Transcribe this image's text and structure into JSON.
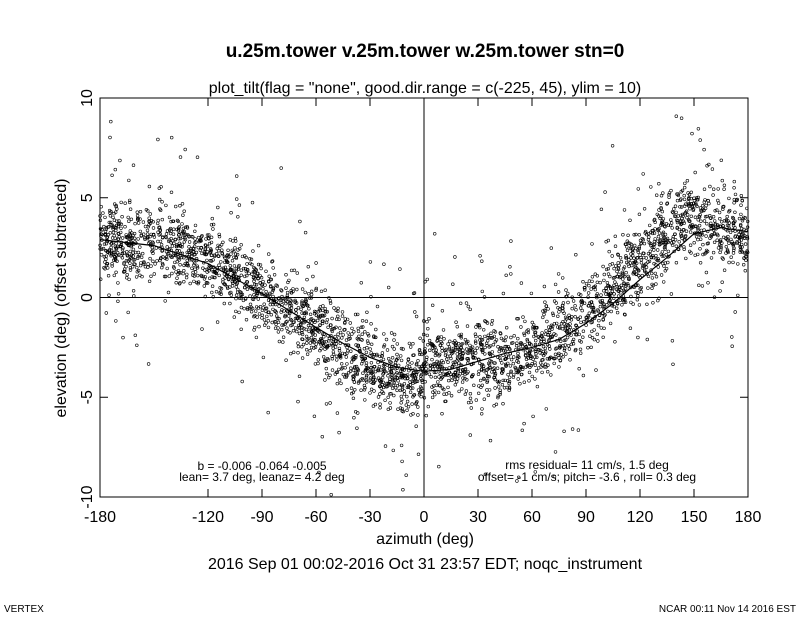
{
  "chart_data": {
    "type": "scatter",
    "title": "u.25m.tower v.25m.tower w.25m.tower stn=0",
    "subtitle": "plot_tilt(flag = \"none\", good.dir.range = c(-225, 45), ylim = 10)",
    "xlabel": "azimuth (deg)",
    "ylabel": "elevation (deg)   (offset subtracted)",
    "xlim": [
      -180,
      180
    ],
    "ylim": [
      -10,
      10
    ],
    "x_ticks": [
      -180,
      -120,
      -90,
      -60,
      -30,
      0,
      30,
      60,
      90,
      120,
      150,
      180
    ],
    "x_tick_labels": [
      "-180",
      "-120",
      "-90",
      "-60",
      "-30",
      "0",
      "30",
      "60",
      "90",
      "120",
      "150",
      "180"
    ],
    "y_ticks": [
      -10,
      -5,
      0,
      5,
      10
    ],
    "y_tick_labels": [
      "-10",
      "-5",
      "0",
      "5",
      "10"
    ],
    "reference_lines": {
      "x": 0,
      "y": 0
    },
    "grid": false,
    "legend": "none",
    "series_color": "#000000",
    "fit_curve": {
      "x": [
        -180,
        -150,
        -120,
        -90,
        -60,
        -45,
        -30,
        -15,
        0,
        15,
        30,
        45,
        60,
        75,
        90,
        105,
        120,
        135,
        150,
        165,
        180
      ],
      "y": [
        2.9,
        2.6,
        1.7,
        0.2,
        -1.5,
        -2.3,
        -3.0,
        -3.5,
        -3.7,
        -3.6,
        -3.2,
        -2.8,
        -2.5,
        -2.1,
        -1.3,
        -0.3,
        0.9,
        2.0,
        3.2,
        3.5,
        3.3
      ]
    },
    "scatter_profile": {
      "x": [
        -180,
        -160,
        -140,
        -120,
        -100,
        -80,
        -60,
        -45,
        -30,
        -15,
        -5,
        0,
        10,
        25,
        40,
        50,
        65,
        75,
        85,
        95,
        110,
        125,
        135,
        145,
        160,
        180
      ],
      "y": [
        3.0,
        2.8,
        2.6,
        2.0,
        0.9,
        -0.5,
        -1.4,
        -2.4,
        -3.4,
        -3.9,
        -4.2,
        -3.6,
        -3.3,
        -3.0,
        -3.2,
        -3.1,
        -2.3,
        -2.0,
        -1.5,
        -0.2,
        0.9,
        2.2,
        3.5,
        4.2,
        3.6,
        3.2
      ]
    },
    "annotations_left": [
      "b = -0.006 -0.064 -0.005",
      "lean= 3.7 deg, leanaz= 4.2 deg"
    ],
    "annotations_right": [
      "rms residual= 11 cm/s, 1.5 deg",
      "offset= -1 cm/s; pitch= -3.6 , roll=  0.3 deg"
    ],
    "time_range": "2016 Sep 01 00:02-2016 Oct 31 23:57 EDT; noqc_instrument",
    "footer_left": "VERTEX",
    "footer_right": "NCAR 00:11 Nov 14 2016 EST"
  }
}
